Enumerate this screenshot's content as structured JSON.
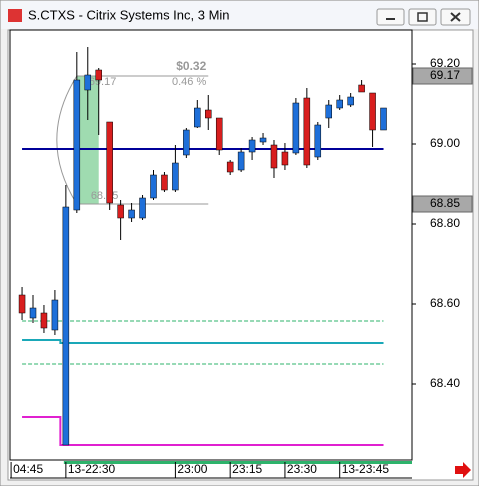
{
  "chart_data": {
    "type": "candlestick",
    "title": "S.CTXS - Citrix Systems Inc, 3 Min",
    "up_color": "#1e6fd9",
    "down_color": "#d81e1e",
    "open": [
      68.6225,
      68.565,
      68.5775,
      68.535,
      68.2475,
      68.835,
      69.135,
      69.185,
      69.055,
      68.8475,
      68.815,
      68.815,
      68.865,
      68.9225,
      68.885,
      68.9725,
      69.0425,
      69.085,
      69.065,
      68.955,
      68.935,
      68.98,
      69.005,
      68.9975,
      68.98,
      68.9775,
      69.115,
      68.9675,
      69.065,
      69.09,
      69.0975,
      69.1475,
      69.1275,
      69.035
    ],
    "high": [
      68.6425,
      68.6225,
      68.5975,
      68.635,
      68.8975,
      69.23,
      69.2425,
      69.19,
      69.055,
      68.86,
      68.8525,
      68.8725,
      68.935,
      68.93,
      68.9975,
      69.04,
      69.11,
      69.1225,
      69.065,
      68.96,
      68.99,
      69.0175,
      69.0275,
      69.01,
      69.0025,
      69.115,
      69.14,
      69.055,
      69.11,
      69.1225,
      69.1275,
      69.16,
      69.1275,
      69.09
    ],
    "low": [
      68.56,
      68.5525,
      68.5275,
      68.5225,
      68.2475,
      68.8275,
      69.06,
      69.0225,
      68.835,
      68.76,
      68.805,
      68.81,
      68.86,
      68.88,
      68.88,
      68.965,
      69.04,
      69.035,
      68.9725,
      68.9225,
      68.93,
      68.96,
      68.9975,
      68.915,
      68.935,
      68.9725,
      68.94,
      68.96,
      69.04,
      69.085,
      69.0925,
      69.13,
      68.9925,
      69.035
    ],
    "close": [
      68.5775,
      68.59,
      68.54,
      68.61,
      68.8425,
      69.16,
      69.1725,
      69.16,
      68.8525,
      68.815,
      68.835,
      68.865,
      68.9225,
      68.885,
      68.9525,
      69.035,
      69.09,
      69.065,
      68.985,
      68.93,
      68.98,
      69.01,
      69.015,
      68.94,
      68.9475,
      69.1025,
      68.9475,
      69.0475,
      69.0975,
      69.11,
      69.1175,
      69.13,
      69.035,
      69.09
    ],
    "overlays": [
      {
        "color": "#000099",
        "dash": false,
        "values": [
          68.9875,
          68.9875,
          68.9875,
          68.9875,
          68.9875,
          68.9875,
          68.9875,
          68.9875,
          68.9875,
          68.9875,
          68.9875,
          68.9875,
          68.9875,
          68.9875,
          68.9875,
          68.9875,
          68.9875,
          68.9875,
          68.9875,
          68.9875,
          68.9875,
          68.9875,
          68.9875,
          68.9875,
          68.9875,
          68.9875,
          68.9875,
          68.9875,
          68.9875,
          68.9875,
          68.9875,
          68.9875,
          68.9875,
          68.9875
        ]
      },
      {
        "color": "#2db36b",
        "dash": true,
        "values": [
          68.5575,
          68.5575,
          68.5575,
          68.5575,
          68.5575,
          68.5575,
          68.5575,
          68.5575,
          68.5575,
          68.5575,
          68.5575,
          68.5575,
          68.5575,
          68.5575,
          68.5575,
          68.5575,
          68.5575,
          68.5575,
          68.5575,
          68.5575,
          68.5575,
          68.5575,
          68.5575,
          68.5575,
          68.5575,
          68.5575,
          68.5575,
          68.5575,
          68.5575,
          68.5575,
          68.5575,
          68.5575,
          68.5575,
          68.5575
        ]
      },
      {
        "color": "#1aa8b8",
        "dash": false,
        "values": [
          68.51,
          68.51,
          68.51,
          68.51,
          68.5025,
          68.5025,
          68.5025,
          68.5025,
          68.5025,
          68.5025,
          68.5025,
          68.5025,
          68.5025,
          68.5025,
          68.5025,
          68.5025,
          68.5025,
          68.5025,
          68.5025,
          68.5025,
          68.5025,
          68.5025,
          68.5025,
          68.5025,
          68.5025,
          68.5025,
          68.5025,
          68.5025,
          68.5025,
          68.5025,
          68.5025,
          68.5025,
          68.5025,
          68.5025
        ]
      },
      {
        "color": "#2db36b",
        "dash": true,
        "values": [
          68.45,
          68.45,
          68.45,
          68.45,
          68.45,
          68.45,
          68.45,
          68.45,
          68.45,
          68.45,
          68.45,
          68.45,
          68.45,
          68.45,
          68.45,
          68.45,
          68.45,
          68.45,
          68.45,
          68.45,
          68.45,
          68.45,
          68.45,
          68.45,
          68.45,
          68.45,
          68.45,
          68.45,
          68.45,
          68.45,
          68.45,
          68.45,
          68.45,
          68.45
        ]
      },
      {
        "color": "#e020d0",
        "dash": false,
        "values": [
          68.3175,
          68.3175,
          68.3175,
          68.3175,
          68.2475,
          68.2475,
          68.2475,
          68.2475,
          68.2475,
          68.2475,
          68.2475,
          68.2475,
          68.2475,
          68.2475,
          68.2475,
          68.2475,
          68.2475,
          68.2475,
          68.2475,
          68.2475,
          68.2475,
          68.2475,
          68.2475,
          68.2475,
          68.2475,
          68.2475,
          68.2475,
          68.2475,
          68.2475,
          68.2475,
          68.2475,
          68.2475,
          68.2475,
          68.2475
        ]
      }
    ],
    "measure": {
      "high": 69.17,
      "low": 68.85,
      "change_label": "$0.32",
      "percent_label": "0.46 %"
    },
    "price_markers": [
      69.17,
      68.85
    ],
    "xlim": [
      -1.1,
      35.6
    ],
    "xticks": [
      {
        "value": -1,
        "label": "04:45"
      },
      {
        "value": 4,
        "label": "13-22:30"
      },
      {
        "value": 14,
        "label": "23:00"
      },
      {
        "value": 19,
        "label": "23:15"
      },
      {
        "value": 24,
        "label": "23:30"
      },
      {
        "value": 29,
        "label": "13-23:45"
      }
    ],
    "ylim": [
      68.21,
      69.285
    ],
    "yticks": [
      {
        "value": 69.2,
        "label": "69.20"
      },
      {
        "value": 69.0,
        "label": "69.00"
      },
      {
        "value": 68.8,
        "label": "68.80"
      },
      {
        "value": 68.6,
        "label": "68.60"
      },
      {
        "value": 68.4,
        "label": "68.40"
      }
    ]
  }
}
